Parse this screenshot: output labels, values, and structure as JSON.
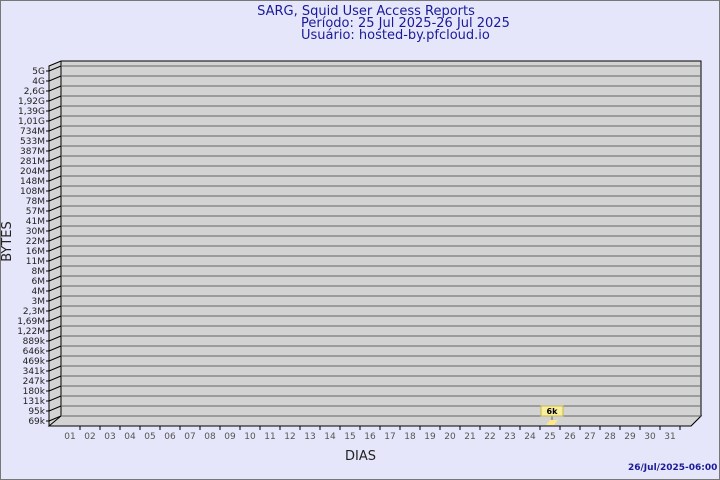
{
  "chart_data": {
    "type": "bar",
    "title": "SARG, Squid User Access Reports",
    "subtitle1": "Período: 25 Jul 2025-26 Jul 2025",
    "subtitle2": "Usuário: hosted-by.pfcloud.io",
    "xlabel": "DIAS",
    "ylabel": "BYTES",
    "y_scale": "log",
    "y_ticks": [
      "5G",
      "4G",
      "2,6G",
      "1,92G",
      "1,39G",
      "1,01G",
      "734M",
      "533M",
      "387M",
      "281M",
      "204M",
      "148M",
      "108M",
      "78M",
      "57M",
      "41M",
      "30M",
      "22M",
      "16M",
      "11M",
      "8M",
      "6M",
      "4M",
      "3M",
      "2,3M",
      "1,69M",
      "1,22M",
      "889k",
      "646k",
      "469k",
      "341k",
      "247k",
      "180k",
      "131k",
      "95k",
      "69k"
    ],
    "categories": [
      "01",
      "02",
      "03",
      "04",
      "05",
      "06",
      "07",
      "08",
      "09",
      "10",
      "11",
      "12",
      "13",
      "14",
      "15",
      "16",
      "17",
      "18",
      "19",
      "20",
      "21",
      "22",
      "23",
      "24",
      "25",
      "26",
      "27",
      "28",
      "29",
      "30",
      "31"
    ],
    "values": [
      {
        "x": "25",
        "y": 6000,
        "label": "6k"
      }
    ],
    "bar_color": "#ffe88c",
    "grid": true,
    "footer": "26/Jul/2025-06:00"
  }
}
